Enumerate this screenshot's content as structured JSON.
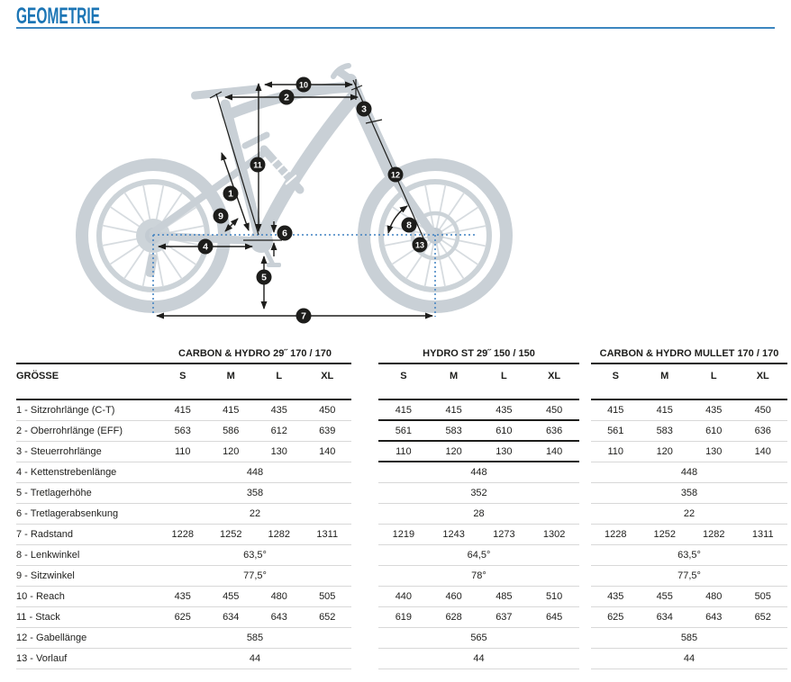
{
  "header": {
    "title": "GEOMETRIE"
  },
  "diagram": {
    "marker_labels": [
      "1",
      "2",
      "3",
      "4",
      "5",
      "6",
      "7",
      "8",
      "9",
      "10",
      "11",
      "12",
      "13"
    ]
  },
  "tables": {
    "size_label": "GRÖSSE",
    "sizes": [
      "S",
      "M",
      "L",
      "XL"
    ],
    "row_labels": [
      "1 - Sitzrohrlänge (C-T)",
      "2 - Oberrohrlänge (EFF)",
      "3 - Steuerrohrlänge",
      "4 - Kettenstrebenlänge",
      "5 - Tretlagerhöhe",
      "6 - Tretlagerabsenkung",
      "7 - Radstand",
      "8 - Lenkwinkel",
      "9 - Sitzwinkel",
      "10 - Reach",
      "11 - Stack",
      "12 - Gabellänge",
      "13 - Vorlauf"
    ],
    "variants": [
      {
        "title": "CARBON & HYDRO 29˝ 170 / 170",
        "dark_rows": [],
        "rows": [
          [
            "415",
            "415",
            "435",
            "450"
          ],
          [
            "563",
            "586",
            "612",
            "639"
          ],
          [
            "110",
            "120",
            "130",
            "140"
          ],
          [
            "448"
          ],
          [
            "358"
          ],
          [
            "22"
          ],
          [
            "1228",
            "1252",
            "1282",
            "1311"
          ],
          [
            "63,5°"
          ],
          [
            "77,5°"
          ],
          [
            "435",
            "455",
            "480",
            "505"
          ],
          [
            "625",
            "634",
            "643",
            "652"
          ],
          [
            "585"
          ],
          [
            "44"
          ]
        ]
      },
      {
        "title": "HYDRO ST 29˝ 150 / 150",
        "dark_rows": [
          0,
          1,
          2
        ],
        "rows": [
          [
            "415",
            "415",
            "435",
            "450"
          ],
          [
            "561",
            "583",
            "610",
            "636"
          ],
          [
            "110",
            "120",
            "130",
            "140"
          ],
          [
            "448"
          ],
          [
            "352"
          ],
          [
            "28"
          ],
          [
            "1219",
            "1243",
            "1273",
            "1302"
          ],
          [
            "64,5°"
          ],
          [
            "78°"
          ],
          [
            "440",
            "460",
            "485",
            "510"
          ],
          [
            "619",
            "628",
            "637",
            "645"
          ],
          [
            "565"
          ],
          [
            "44"
          ]
        ]
      },
      {
        "title": "CARBON & HYDRO MULLET 170 / 170",
        "dark_rows": [],
        "rows": [
          [
            "415",
            "415",
            "435",
            "450"
          ],
          [
            "561",
            "583",
            "610",
            "636"
          ],
          [
            "110",
            "120",
            "130",
            "140"
          ],
          [
            "448"
          ],
          [
            "358"
          ],
          [
            "22"
          ],
          [
            "1228",
            "1252",
            "1282",
            "1311"
          ],
          [
            "63,5°"
          ],
          [
            "77,5°"
          ],
          [
            "435",
            "455",
            "480",
            "505"
          ],
          [
            "625",
            "634",
            "643",
            "652"
          ],
          [
            "585"
          ],
          [
            "44"
          ]
        ]
      }
    ]
  },
  "colors": {
    "accent_blue": "#1b75b5",
    "dotted_blue": "#3f80c0",
    "dark": "#1d1d1b",
    "bike_gray": "#c9d0d6",
    "row_line": "#d8d8d8"
  }
}
